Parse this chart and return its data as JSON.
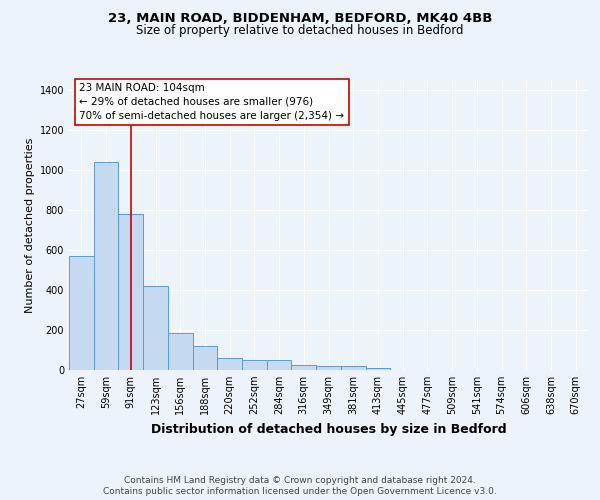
{
  "title1": "23, MAIN ROAD, BIDDENHAM, BEDFORD, MK40 4BB",
  "title2": "Size of property relative to detached houses in Bedford",
  "xlabel": "Distribution of detached houses by size in Bedford",
  "ylabel": "Number of detached properties",
  "categories": [
    "27sqm",
    "59sqm",
    "91sqm",
    "123sqm",
    "156sqm",
    "188sqm",
    "220sqm",
    "252sqm",
    "284sqm",
    "316sqm",
    "349sqm",
    "381sqm",
    "413sqm",
    "445sqm",
    "477sqm",
    "509sqm",
    "541sqm",
    "574sqm",
    "606sqm",
    "638sqm",
    "670sqm"
  ],
  "values": [
    570,
    1040,
    780,
    420,
    185,
    120,
    62,
    48,
    48,
    25,
    22,
    18,
    10,
    0,
    0,
    0,
    0,
    0,
    0,
    0,
    0
  ],
  "bar_color": "#c5d9f0",
  "bar_edge_color": "#5b9bd5",
  "red_line_x": 2,
  "annotation_line1": "23 MAIN ROAD: 104sqm",
  "annotation_line2": "← 29% of detached houses are smaller (976)",
  "annotation_line3": "70% of semi-detached houses are larger (2,354) →",
  "annotation_box_edge": "#cc0000",
  "footer1": "Contains HM Land Registry data © Crown copyright and database right 2024.",
  "footer2": "Contains public sector information licensed under the Open Government Licence v3.0.",
  "ylim": [
    0,
    1450
  ],
  "yticks": [
    0,
    200,
    400,
    600,
    800,
    1000,
    1200,
    1400
  ],
  "background_color": "#edf3fb",
  "plot_bg_color": "#edf3fb",
  "grid_color": "#ffffff",
  "title1_fontsize": 9.5,
  "title2_fontsize": 8.5,
  "xlabel_fontsize": 9,
  "ylabel_fontsize": 8,
  "tick_fontsize": 7,
  "annotation_fontsize": 7.5,
  "footer_fontsize": 6.5
}
